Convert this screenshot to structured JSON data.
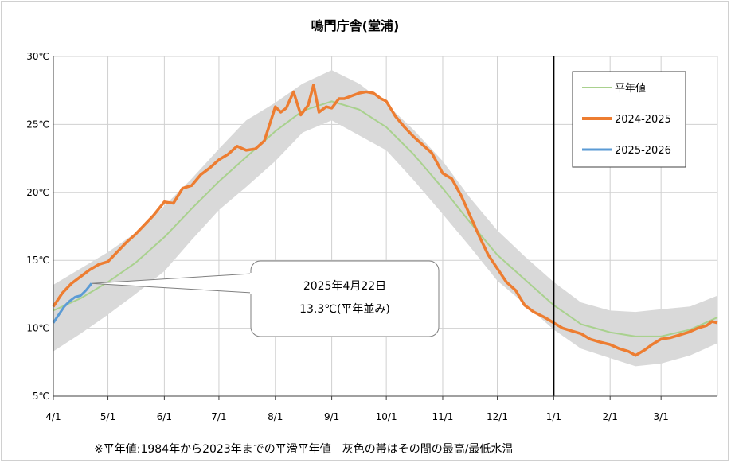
{
  "chart_data": {
    "type": "line",
    "title": "鳴門庁舎(堂浦)",
    "ylim": [
      5,
      30
    ],
    "y_ticks": [
      "5℃",
      "10℃",
      "15℃",
      "20℃",
      "25℃",
      "30℃"
    ],
    "y_tick_values": [
      5,
      10,
      15,
      20,
      25,
      30
    ],
    "x_ticks": [
      "4/1",
      "5/1",
      "6/1",
      "7/1",
      "8/1",
      "9/1",
      "10/1",
      "11/1",
      "12/1",
      "1/1",
      "2/1",
      "3/1"
    ],
    "x_tick_days": [
      0,
      30,
      61,
      91,
      122,
      153,
      183,
      214,
      244,
      275,
      306,
      334
    ],
    "xlim_days": [
      0,
      365
    ],
    "marker_day": 275,
    "grid": true,
    "legend_position": "top-right",
    "colors": {
      "normal": "#a9d18e",
      "y2024": "#ed7d31",
      "y2025": "#5b9bd5",
      "band": "#d9d9d9",
      "grid": "#d0d0d0"
    },
    "series": [
      {
        "name": "平年値",
        "key": "normal",
        "days": [
          0,
          15,
          30,
          45,
          61,
          76,
          91,
          106,
          122,
          137,
          153,
          168,
          183,
          198,
          214,
          229,
          244,
          259,
          275,
          290,
          306,
          320,
          334,
          350,
          365
        ],
        "values": [
          11.3,
          12.2,
          13.4,
          14.8,
          16.7,
          18.8,
          20.8,
          22.6,
          24.5,
          26.0,
          26.7,
          26.1,
          24.8,
          22.8,
          20.3,
          17.8,
          15.4,
          13.6,
          11.7,
          10.3,
          9.7,
          9.4,
          9.4,
          9.9,
          10.8
        ]
      },
      {
        "name": "2024-2025",
        "key": "y2024",
        "days": [
          0,
          5,
          10,
          15,
          20,
          25,
          30,
          35,
          40,
          45,
          50,
          55,
          61,
          66,
          71,
          76,
          81,
          86,
          91,
          96,
          101,
          106,
          111,
          116,
          122,
          125,
          128,
          132,
          136,
          140,
          143,
          146,
          150,
          153,
          157,
          160,
          164,
          168,
          172,
          176,
          180,
          183,
          188,
          193,
          198,
          203,
          208,
          214,
          219,
          224,
          229,
          234,
          239,
          244,
          249,
          254,
          259,
          264,
          270,
          275,
          280,
          285,
          290,
          295,
          300,
          306,
          311,
          316,
          320,
          325,
          329,
          334,
          339,
          344,
          349,
          354,
          359,
          362,
          365
        ],
        "values": [
          11.6,
          12.6,
          13.3,
          13.8,
          14.3,
          14.7,
          14.9,
          15.6,
          16.3,
          16.9,
          17.6,
          18.3,
          19.3,
          19.2,
          20.3,
          20.5,
          21.3,
          21.8,
          22.4,
          22.8,
          23.4,
          23.1,
          23.2,
          23.8,
          26.3,
          25.9,
          26.2,
          27.4,
          25.7,
          26.4,
          27.9,
          25.9,
          26.3,
          26.2,
          26.9,
          26.9,
          27.1,
          27.3,
          27.4,
          27.3,
          26.9,
          26.7,
          25.6,
          24.8,
          24.1,
          23.5,
          22.9,
          21.4,
          21.0,
          19.8,
          18.3,
          16.8,
          15.4,
          14.4,
          13.4,
          12.8,
          11.7,
          11.2,
          10.8,
          10.4,
          10.0,
          9.8,
          9.6,
          9.2,
          9.0,
          8.8,
          8.5,
          8.3,
          8.0,
          8.4,
          8.8,
          9.2,
          9.3,
          9.5,
          9.7,
          10.0,
          10.2,
          10.5,
          10.4
        ]
      },
      {
        "name": "2025-2026",
        "key": "y2025",
        "days": [
          0,
          3,
          6,
          9,
          12,
          15,
          18,
          21
        ],
        "values": [
          10.4,
          11.0,
          11.6,
          12.0,
          12.3,
          12.4,
          12.8,
          13.3
        ]
      }
    ],
    "band": {
      "days": [
        0,
        15,
        30,
        45,
        61,
        76,
        91,
        106,
        122,
        137,
        153,
        168,
        183,
        198,
        214,
        229,
        244,
        259,
        275,
        290,
        306,
        320,
        334,
        350,
        365
      ],
      "upper": [
        13.2,
        14.4,
        15.6,
        17.0,
        19.0,
        21.0,
        23.2,
        25.3,
        26.6,
        28.0,
        29.0,
        28.0,
        26.5,
        24.6,
        22.3,
        19.6,
        17.2,
        15.3,
        13.4,
        11.9,
        11.3,
        11.2,
        11.4,
        11.6,
        12.4
      ],
      "lower": [
        8.3,
        9.6,
        11.0,
        12.5,
        14.2,
        16.5,
        18.7,
        20.4,
        22.3,
        24.4,
        25.3,
        24.2,
        23.1,
        20.9,
        18.4,
        16.0,
        13.5,
        11.8,
        9.9,
        8.5,
        7.8,
        7.2,
        7.4,
        8.0,
        8.9
      ]
    },
    "callout": {
      "date": "2025年4月22日",
      "text": "13.3℃(平年並み)",
      "day": 21,
      "value": 13.3
    },
    "footnote": "※平年値:1984年から2023年までの平滑平年値　灰色の帯はその間の最高/最低水温"
  }
}
